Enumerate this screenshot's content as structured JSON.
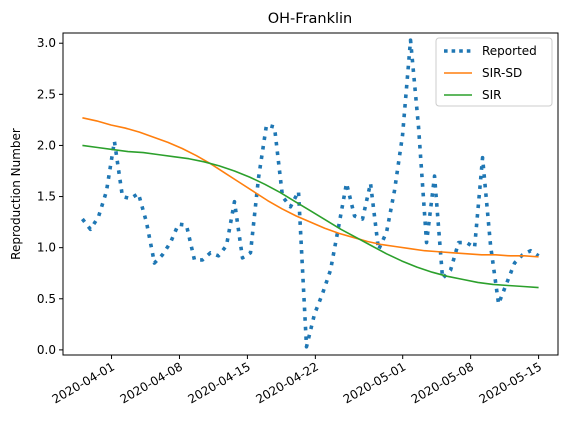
{
  "chart_data": {
    "type": "line",
    "title": "OH-Franklin",
    "xlabel": "",
    "ylabel": "Reproduction Number",
    "x_start": "2020-03-29",
    "x_end": "2020-05-15",
    "xlim": [
      "2020-03-27",
      "2020-05-17"
    ],
    "ylim": [
      -0.05,
      3.1
    ],
    "x_ticks": [
      "2020-04-01",
      "2020-04-08",
      "2020-04-15",
      "2020-04-22",
      "2020-05-01",
      "2020-05-08",
      "2020-05-15"
    ],
    "y_ticks": [
      "0.0",
      "0.5",
      "1.0",
      "1.5",
      "2.0",
      "2.5",
      "3.0"
    ],
    "grid": false,
    "legend_position": "top-right",
    "series": [
      {
        "name": "Reported",
        "color": "#1f77b4",
        "style": "dotted",
        "values": [
          1.28,
          1.18,
          1.3,
          1.55,
          2.04,
          1.5,
          1.48,
          1.53,
          1.25,
          0.85,
          0.93,
          1.05,
          1.23,
          1.22,
          0.88,
          0.88,
          0.95,
          0.92,
          1.02,
          1.45,
          0.9,
          0.95,
          1.68,
          2.2,
          2.18,
          1.5,
          1.4,
          1.55,
          0.03,
          0.35,
          0.55,
          0.78,
          1.2,
          1.63,
          1.31,
          1.28,
          1.63,
          0.98,
          1.15,
          1.56,
          2.1,
          3.03,
          2.18,
          1.05,
          1.7,
          0.7,
          0.78,
          1.05,
          1.05,
          1.0,
          1.88,
          1.02,
          0.45,
          0.65,
          0.85,
          0.93,
          0.97,
          0.92
        ]
      },
      {
        "name": "SIR-SD",
        "color": "#ff7f0e",
        "style": "solid",
        "values": [
          2.27,
          2.24,
          2.2,
          2.17,
          2.13,
          2.08,
          2.03,
          1.97,
          1.9,
          1.82,
          1.73,
          1.64,
          1.55,
          1.46,
          1.38,
          1.31,
          1.25,
          1.19,
          1.14,
          1.1,
          1.06,
          1.03,
          1.01,
          0.99,
          0.97,
          0.96,
          0.95,
          0.94,
          0.93,
          0.93,
          0.92,
          0.92,
          0.91
        ]
      },
      {
        "name": "SIR",
        "color": "#2ca02c",
        "style": "solid",
        "values": [
          2.0,
          1.98,
          1.96,
          1.94,
          1.93,
          1.91,
          1.89,
          1.87,
          1.84,
          1.8,
          1.75,
          1.69,
          1.62,
          1.54,
          1.45,
          1.36,
          1.27,
          1.18,
          1.1,
          1.02,
          0.94,
          0.87,
          0.81,
          0.76,
          0.72,
          0.69,
          0.66,
          0.64,
          0.63,
          0.62,
          0.61
        ]
      }
    ]
  }
}
